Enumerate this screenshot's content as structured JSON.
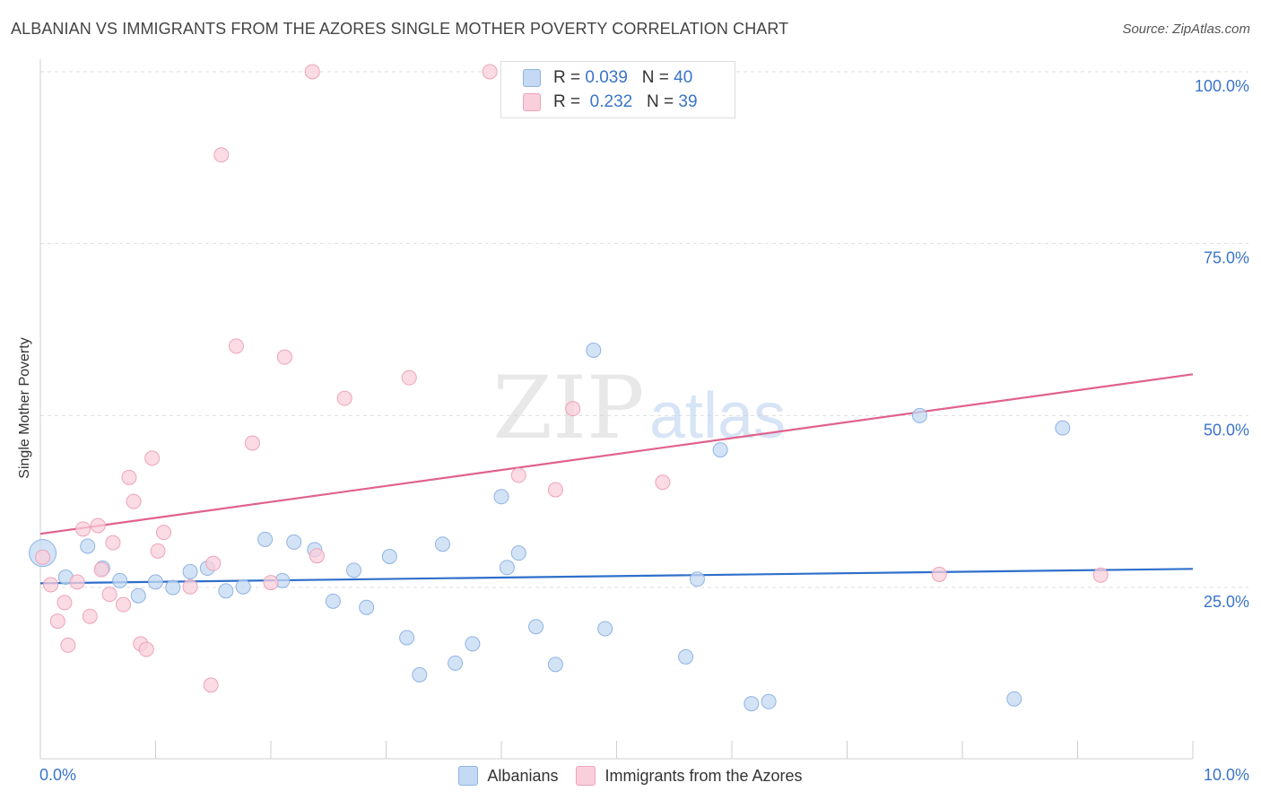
{
  "title": "ALBANIAN VS IMMIGRANTS FROM THE AZORES SINGLE MOTHER POVERTY CORRELATION CHART",
  "source": "Source: ZipAtlas.com",
  "watermark": {
    "zip": "ZIP",
    "atlas": "atlas"
  },
  "legend_top": [
    {
      "r_label": "R = ",
      "r_value": "0.039",
      "n_label": "N = ",
      "n_value": "40"
    },
    {
      "r_label": "R = ",
      "r_value": " 0.232",
      "n_label": "N = ",
      "n_value": "39"
    }
  ],
  "colors": {
    "blue_fill": "#c4d9f3",
    "blue_stroke": "#8fb3e3",
    "blue_line": "#2f6fcb",
    "pink_fill": "#f9cfdb",
    "pink_stroke": "#eda3ba",
    "pink_line": "#e0628c",
    "tick_label": "#3a74c9",
    "grid": "#dddddd"
  },
  "chart_data": {
    "type": "scatter",
    "title": "ALBANIAN VS IMMIGRANTS FROM THE AZORES SINGLE MOTHER POVERTY CORRELATION CHART",
    "xlabel": "",
    "ylabel": "Single Mother Poverty",
    "xlim": [
      0,
      10
    ],
    "ylim": [
      0,
      100
    ],
    "x_tick_labels": [
      "0.0%",
      "10.0%"
    ],
    "y_ticks": [
      25,
      50,
      75,
      100
    ],
    "y_tick_labels": [
      "25.0%",
      "50.0%",
      "75.0%",
      "100.0%"
    ],
    "grid": true,
    "legend_placement": "top-center",
    "series": [
      {
        "name": "Albanians",
        "color": "#c4d9f3",
        "r": 0.039,
        "n": 40,
        "trend": [
          [
            0,
            25.6
          ],
          [
            10,
            27.7
          ]
        ],
        "points": [
          [
            0.02,
            30.0
          ],
          [
            0.22,
            26.5
          ],
          [
            0.41,
            31.0
          ],
          [
            0.54,
            27.8
          ],
          [
            0.69,
            26.0
          ],
          [
            0.85,
            23.8
          ],
          [
            1.0,
            25.8
          ],
          [
            1.15,
            25.0
          ],
          [
            1.3,
            27.3
          ],
          [
            1.45,
            27.8
          ],
          [
            1.61,
            24.5
          ],
          [
            1.76,
            25.1
          ],
          [
            1.95,
            32.0
          ],
          [
            2.1,
            26.0
          ],
          [
            2.2,
            31.6
          ],
          [
            2.38,
            30.5
          ],
          [
            2.54,
            23.0
          ],
          [
            2.72,
            27.5
          ],
          [
            2.83,
            22.1
          ],
          [
            3.03,
            29.5
          ],
          [
            3.18,
            17.7
          ],
          [
            3.29,
            12.3
          ],
          [
            3.49,
            31.3
          ],
          [
            3.6,
            14.0
          ],
          [
            3.75,
            16.8
          ],
          [
            4.0,
            38.2
          ],
          [
            4.05,
            27.9
          ],
          [
            4.15,
            30.0
          ],
          [
            4.3,
            19.3
          ],
          [
            4.47,
            13.8
          ],
          [
            4.8,
            59.5
          ],
          [
            4.9,
            19.0
          ],
          [
            5.6,
            14.9
          ],
          [
            5.7,
            26.2
          ],
          [
            5.9,
            45.0
          ],
          [
            6.17,
            8.1
          ],
          [
            6.32,
            8.4
          ],
          [
            7.63,
            50.0
          ],
          [
            8.45,
            8.8
          ],
          [
            8.87,
            48.2
          ]
        ]
      },
      {
        "name": "Immigrants from the Azores",
        "color": "#f9cfdb",
        "r": 0.232,
        "n": 39,
        "trend": [
          [
            0,
            32.8
          ],
          [
            10,
            56.0
          ]
        ],
        "points": [
          [
            0.02,
            29.4
          ],
          [
            0.09,
            25.4
          ],
          [
            0.15,
            20.1
          ],
          [
            0.21,
            22.8
          ],
          [
            0.24,
            16.6
          ],
          [
            0.32,
            25.8
          ],
          [
            0.37,
            33.5
          ],
          [
            0.43,
            20.8
          ],
          [
            0.5,
            34.0
          ],
          [
            0.53,
            27.6
          ],
          [
            0.6,
            24.0
          ],
          [
            0.63,
            31.5
          ],
          [
            0.72,
            22.5
          ],
          [
            0.77,
            41.0
          ],
          [
            0.81,
            37.5
          ],
          [
            0.87,
            16.8
          ],
          [
            0.92,
            16.0
          ],
          [
            0.97,
            43.8
          ],
          [
            1.02,
            30.3
          ],
          [
            1.07,
            33.0
          ],
          [
            1.3,
            25.1
          ],
          [
            1.48,
            10.8
          ],
          [
            1.5,
            28.5
          ],
          [
            1.57,
            87.9
          ],
          [
            1.7,
            60.1
          ],
          [
            1.84,
            46.0
          ],
          [
            2.0,
            25.7
          ],
          [
            2.12,
            58.5
          ],
          [
            2.36,
            100.0
          ],
          [
            2.4,
            29.6
          ],
          [
            2.64,
            52.5
          ],
          [
            3.2,
            55.5
          ],
          [
            3.9,
            100.0
          ],
          [
            4.15,
            41.3
          ],
          [
            4.47,
            39.2
          ],
          [
            4.62,
            51.0
          ],
          [
            5.4,
            40.3
          ],
          [
            7.8,
            26.9
          ],
          [
            9.2,
            26.8
          ]
        ]
      }
    ]
  }
}
